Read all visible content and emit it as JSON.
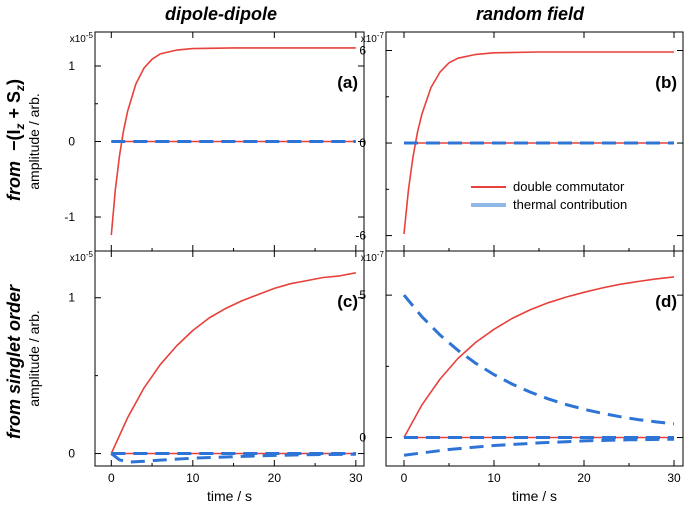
{
  "figure": {
    "col_titles": [
      "dipole-dipole",
      "random field"
    ],
    "row_titles": {
      "top_prefix": "from",
      "top_expr": "−(I",
      "top_sub1": "z",
      "top_plus": " + S",
      "top_sub2": "z",
      "top_close": ")",
      "bottom": "from singlet order"
    },
    "legend": {
      "red_label": "double commutator",
      "blue_label": "thermal contribution"
    },
    "colors": {
      "red": "#e8413b",
      "blue": "#2d74d6",
      "legend_blue": "#8fb8e6"
    }
  },
  "chart_data": [
    {
      "type": "line",
      "panel_label": "(a)",
      "multiplier": "x10",
      "multiplier_exp": "-5",
      "ylabel": "amplitude / arb.",
      "xlabel": "",
      "xlim": [
        -2,
        31
      ],
      "ylim": [
        -1.45,
        1.45
      ],
      "xticks": [
        0,
        10,
        20,
        30
      ],
      "show_xticklabels": false,
      "yticks": [
        1,
        0,
        -1
      ],
      "yticklabels": [
        "1",
        "0",
        "-1"
      ],
      "series": [
        {
          "style": "red",
          "x": [
            0,
            0.5,
            1,
            1.5,
            2,
            3,
            4,
            5,
            6,
            8,
            10,
            15,
            20,
            25,
            30
          ],
          "y": [
            -1.24,
            -0.63,
            -0.19,
            0.14,
            0.4,
            0.76,
            0.97,
            1.09,
            1.16,
            1.21,
            1.23,
            1.24,
            1.24,
            1.24,
            1.24
          ]
        },
        {
          "style": "red",
          "x": [
            0,
            30
          ],
          "y": [
            0,
            0
          ]
        },
        {
          "style": "blue-dashed",
          "x": [
            0,
            30
          ],
          "y": [
            0,
            0
          ]
        }
      ]
    },
    {
      "type": "line",
      "panel_label": "(b)",
      "multiplier": "x10",
      "multiplier_exp": "-7",
      "ylabel": "",
      "xlabel": "",
      "xlim": [
        -2,
        31
      ],
      "ylim": [
        -7,
        7.2
      ],
      "xticks": [
        0,
        10,
        20,
        30
      ],
      "show_xticklabels": false,
      "yticks": [
        6,
        0,
        -6
      ],
      "yticklabels": [
        "6",
        "0",
        "-6"
      ],
      "series": [
        {
          "style": "red",
          "x": [
            0,
            0.5,
            1,
            1.5,
            2,
            3,
            4,
            5,
            6,
            8,
            10,
            15,
            20,
            25,
            30
          ],
          "y": [
            -5.9,
            -3.0,
            -0.9,
            0.7,
            1.9,
            3.6,
            4.6,
            5.2,
            5.5,
            5.75,
            5.85,
            5.9,
            5.9,
            5.9,
            5.9
          ]
        },
        {
          "style": "red",
          "x": [
            0,
            30
          ],
          "y": [
            0,
            0
          ]
        },
        {
          "style": "blue-dashed",
          "x": [
            0,
            30
          ],
          "y": [
            0,
            0
          ]
        }
      ]
    },
    {
      "type": "line",
      "panel_label": "(c)",
      "multiplier": "x10",
      "multiplier_exp": "-5",
      "ylabel": "amplitude / arb.",
      "xlabel": "time / s",
      "xlim": [
        -2,
        31
      ],
      "ylim": [
        -0.08,
        1.3
      ],
      "xticks": [
        0,
        10,
        20,
        30
      ],
      "show_xticklabels": true,
      "xticklabels": [
        "0",
        "10",
        "20",
        "30"
      ],
      "yticks": [
        1,
        0
      ],
      "yticklabels": [
        "1",
        "0"
      ],
      "series": [
        {
          "style": "red",
          "x": [
            0,
            2,
            4,
            6,
            8,
            10,
            12,
            14,
            16,
            18,
            20,
            22,
            24,
            26,
            28,
            30
          ],
          "y": [
            0,
            0.23,
            0.42,
            0.57,
            0.69,
            0.79,
            0.87,
            0.93,
            0.98,
            1.02,
            1.06,
            1.09,
            1.11,
            1.13,
            1.14,
            1.16
          ]
        },
        {
          "style": "red",
          "x": [
            0,
            30
          ],
          "y": [
            0,
            0
          ]
        },
        {
          "style": "blue-dashed",
          "x": [
            0,
            30
          ],
          "y": [
            0,
            0
          ]
        },
        {
          "style": "blue-dashed",
          "x": [
            0,
            1,
            2,
            4,
            6,
            10,
            15,
            20,
            25,
            30
          ],
          "y": [
            0,
            -0.04,
            -0.055,
            -0.05,
            -0.042,
            -0.03,
            -0.02,
            -0.012,
            -0.007,
            -0.004
          ]
        }
      ]
    },
    {
      "type": "line",
      "panel_label": "(d)",
      "multiplier": "x10",
      "multiplier_exp": "-7",
      "ylabel": "",
      "xlabel": "time / s",
      "xlim": [
        -2,
        31
      ],
      "ylim": [
        -1.0,
        6.55
      ],
      "xticks": [
        0,
        10,
        20,
        30
      ],
      "show_xticklabels": true,
      "xticklabels": [
        "0",
        "10",
        "20",
        "30"
      ],
      "yticks": [
        5,
        0
      ],
      "yticklabels": [
        "5",
        "0"
      ],
      "series": [
        {
          "style": "red",
          "x": [
            0,
            2,
            4,
            6,
            8,
            10,
            12,
            14,
            16,
            18,
            20,
            22,
            24,
            26,
            28,
            30
          ],
          "y": [
            0,
            1.15,
            2.05,
            2.78,
            3.35,
            3.8,
            4.18,
            4.48,
            4.73,
            4.93,
            5.1,
            5.25,
            5.38,
            5.48,
            5.57,
            5.64
          ]
        },
        {
          "style": "red",
          "x": [
            0,
            30
          ],
          "y": [
            0,
            0
          ]
        },
        {
          "style": "blue-dashed",
          "x": [
            0,
            30
          ],
          "y": [
            0,
            0
          ]
        },
        {
          "style": "blue-dashed",
          "x": [
            0,
            2,
            4,
            6,
            8,
            10,
            12,
            14,
            16,
            18,
            20,
            22,
            24,
            26,
            28,
            30
          ],
          "y": [
            5.0,
            4.24,
            3.6,
            3.06,
            2.6,
            2.21,
            1.88,
            1.6,
            1.36,
            1.16,
            0.99,
            0.85,
            0.73,
            0.63,
            0.55,
            0.48
          ]
        },
        {
          "style": "blue-dashed",
          "x": [
            0,
            5,
            10,
            15,
            20,
            25,
            30
          ],
          "y": [
            -0.62,
            -0.42,
            -0.28,
            -0.19,
            -0.12,
            -0.08,
            -0.06
          ]
        }
      ]
    }
  ]
}
